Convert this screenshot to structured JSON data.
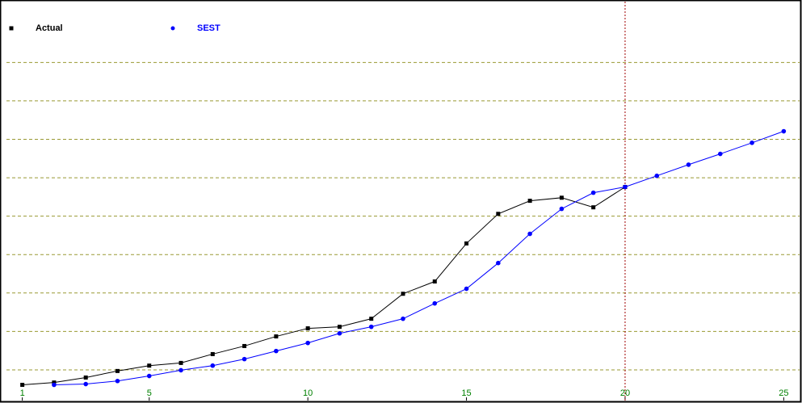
{
  "chart_data": {
    "type": "line",
    "x": [
      1,
      2,
      3,
      4,
      5,
      6,
      7,
      8,
      9,
      10,
      11,
      12,
      13,
      14,
      15,
      16,
      17,
      18,
      19,
      20,
      21,
      22,
      23,
      24,
      25
    ],
    "series": [
      {
        "name": "Actual",
        "color": "#000000",
        "marker": "square",
        "values": [
          0.61,
          0.67,
          0.8,
          0.97,
          1.11,
          1.18,
          1.41,
          1.62,
          1.87,
          2.08,
          2.12,
          2.33,
          2.98,
          3.3,
          4.29,
          5.06,
          5.4,
          5.48,
          5.23,
          5.76,
          null,
          null,
          null,
          null,
          null
        ]
      },
      {
        "name": "SEST",
        "color": "#0000ff",
        "marker": "dot",
        "values": [
          null,
          0.61,
          0.63,
          0.71,
          0.84,
          0.99,
          1.11,
          1.28,
          1.49,
          1.7,
          1.95,
          2.12,
          2.33,
          2.73,
          3.11,
          3.78,
          4.54,
          5.19,
          5.61,
          5.76,
          6.05,
          6.34,
          6.62,
          6.91,
          7.21
        ]
      }
    ],
    "xlim": [
      0.5,
      25.5
    ],
    "xticks": [
      1,
      5,
      10,
      15,
      20,
      25
    ],
    "xtick_color": "#008000",
    "ylim": [
      0.2,
      10.5
    ],
    "yticks": [
      1,
      2,
      3,
      4,
      5,
      6,
      7,
      8,
      9
    ],
    "grid": true,
    "grid_color": "#999933",
    "marker_x": 20,
    "marker_color": "#a00000",
    "legend": "top-left"
  }
}
